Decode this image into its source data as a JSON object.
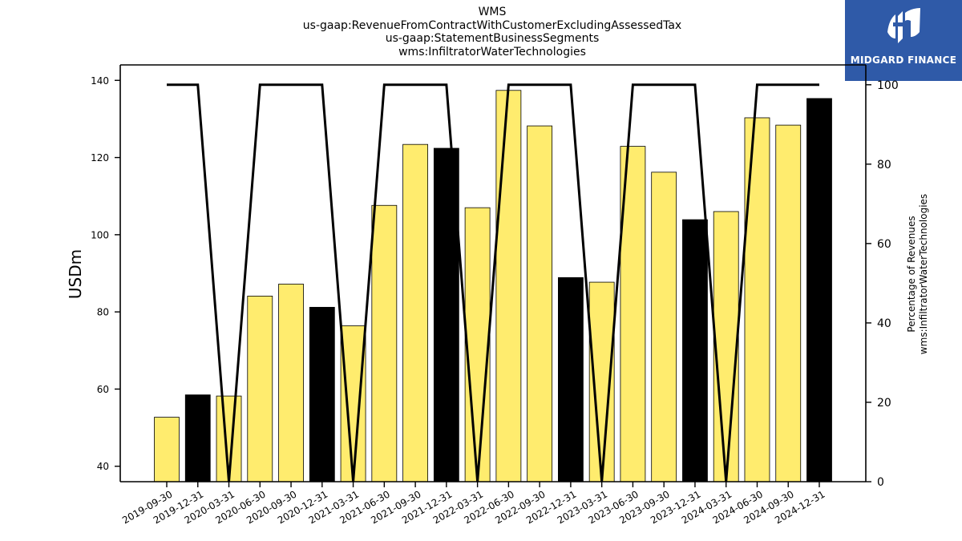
{
  "chart_data": {
    "type": "bar",
    "title_lines": [
      "WMS",
      "us-gaap:RevenueFromContractWithCustomerExcludingAssessedTax",
      "us-gaap:StatementBusinessSegments",
      "wms:InfiltratorWaterTechnologies"
    ],
    "categories": [
      "2019-09-30",
      "2019-12-31",
      "2020-03-31",
      "2020-06-30",
      "2020-09-30",
      "2020-12-31",
      "2021-03-31",
      "2021-06-30",
      "2021-09-30",
      "2021-12-31",
      "2022-03-31",
      "2022-06-30",
      "2022-09-30",
      "2022-12-31",
      "2023-03-31",
      "2023-06-30",
      "2023-09-30",
      "2023-12-31",
      "2024-03-31",
      "2024-06-30",
      "2024-09-30",
      "2024-12-31"
    ],
    "series": [
      {
        "values": [
          52.7,
          58.5,
          58.2,
          84.1,
          87.2,
          81.2,
          76.4,
          107.6,
          123.4,
          122.4,
          107.0,
          137.4,
          128.2,
          88.9,
          87.7,
          122.9,
          116.2,
          103.9,
          106.0,
          130.3,
          128.4,
          135.3
        ],
        "axis": "left"
      },
      {
        "type": "line",
        "axis": "right",
        "values": [
          100,
          100,
          0,
          100,
          100,
          100,
          0,
          100,
          100,
          100,
          0,
          100,
          100,
          100,
          0,
          100,
          100,
          100,
          0,
          100,
          100,
          100
        ]
      }
    ],
    "highlight_categories": [
      "2019-12-31",
      "2020-12-31",
      "2021-12-31",
      "2022-12-31",
      "2023-12-31",
      "2024-12-31"
    ],
    "ylabel": "USDm",
    "ylabel_right_lines": [
      "Percentage of Revenues",
      "wms:InfiltratorWaterTechnologies"
    ],
    "ylim": [
      36,
      144
    ],
    "y2lim": [
      0,
      105
    ],
    "yticks": [
      40,
      60,
      80,
      100,
      120,
      140
    ],
    "y2ticks": [
      0,
      20,
      40,
      60,
      80,
      100
    ],
    "grid": false,
    "colors": {
      "bar": "#ffec6e",
      "highlight": "#000000",
      "line": "#000000"
    }
  },
  "logo": {
    "text": "MIDGARD FINANCE",
    "bg": "#2f5aa8"
  }
}
